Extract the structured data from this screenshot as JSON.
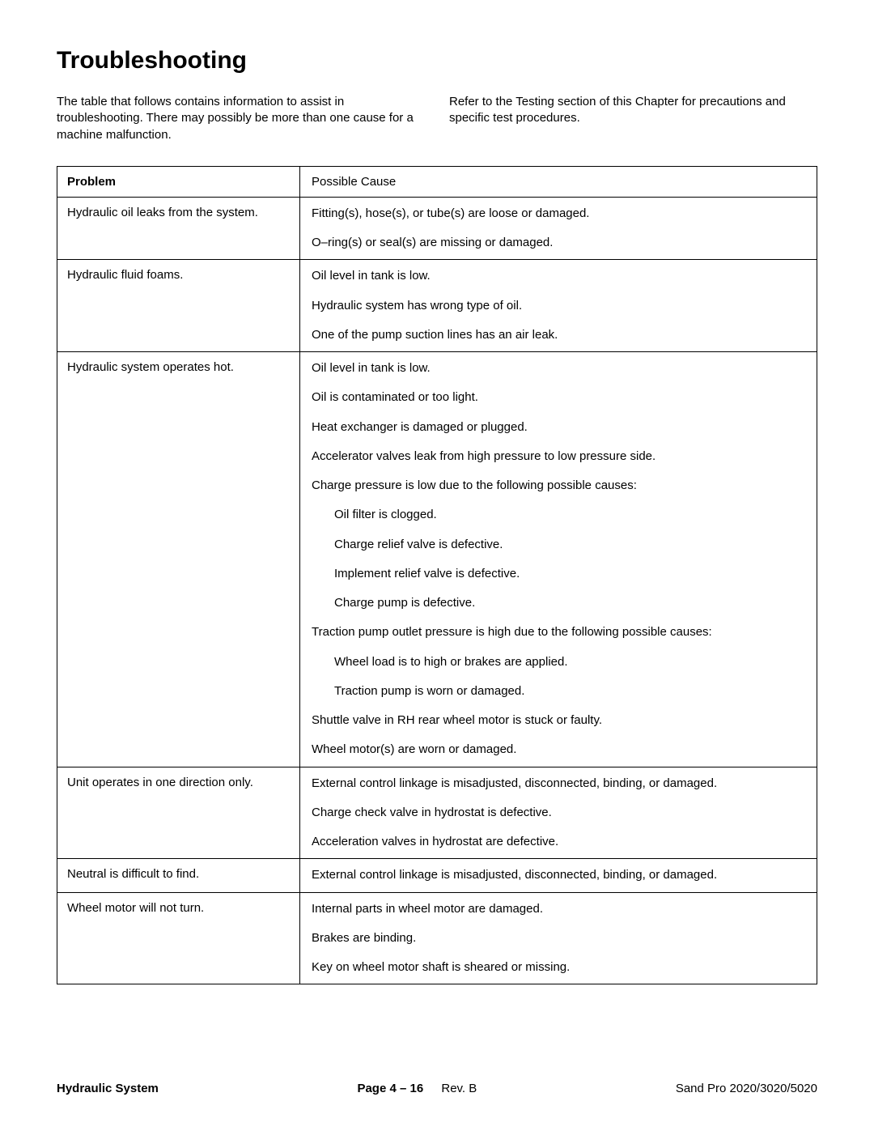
{
  "title": "Troubleshooting",
  "intro_left": "The table that follows contains information to assist in troubleshooting. There may possibly be more than one cause for a machine malfunction.",
  "intro_right": "Refer to the Testing section of this Chapter for precautions and specific test procedures.",
  "table": {
    "header_problem": "Problem",
    "header_cause": "Possible Cause",
    "rows": [
      {
        "problem": "Hydraulic oil leaks from the system.",
        "causes": [
          {
            "text": "Fitting(s), hose(s), or tube(s) are loose or damaged.",
            "sub": false
          },
          {
            "text": "O–ring(s) or seal(s) are missing or damaged.",
            "sub": false
          }
        ]
      },
      {
        "problem": "Hydraulic fluid foams.",
        "causes": [
          {
            "text": "Oil level in tank is low.",
            "sub": false
          },
          {
            "text": "Hydraulic system has wrong type of oil.",
            "sub": false
          },
          {
            "text": "One of the pump suction lines has an air leak.",
            "sub": false
          }
        ]
      },
      {
        "problem": "Hydraulic system operates hot.",
        "causes": [
          {
            "text": "Oil level in tank is low.",
            "sub": false
          },
          {
            "text": "Oil is contaminated or too light.",
            "sub": false
          },
          {
            "text": "Heat exchanger is damaged or plugged.",
            "sub": false
          },
          {
            "text": "Accelerator valves leak from high pressure to low pressure side.",
            "sub": false
          },
          {
            "text": "Charge pressure is low due to the following possible causes:",
            "sub": false
          },
          {
            "text": "Oil filter is clogged.",
            "sub": true
          },
          {
            "text": "Charge relief valve is defective.",
            "sub": true
          },
          {
            "text": "Implement relief valve is defective.",
            "sub": true
          },
          {
            "text": "Charge pump is defective.",
            "sub": true
          },
          {
            "text": "Traction pump outlet pressure is high due to the following possible causes:",
            "sub": false
          },
          {
            "text": "Wheel load is to high or brakes are applied.",
            "sub": true
          },
          {
            "text": "Traction pump is worn or damaged.",
            "sub": true
          },
          {
            "text": "Shuttle valve in RH rear wheel motor is stuck or faulty.",
            "sub": false
          },
          {
            "text": "Wheel motor(s) are worn or damaged.",
            "sub": false
          }
        ]
      },
      {
        "problem": "Unit operates in one direction only.",
        "causes": [
          {
            "text": "External control linkage is misadjusted, disconnected, binding, or damaged.",
            "sub": false
          },
          {
            "text": "Charge check valve in hydrostat is defective.",
            "sub": false
          },
          {
            "text": "Acceleration valves in hydrostat are defective.",
            "sub": false
          }
        ]
      },
      {
        "problem": "Neutral is difficult to find.",
        "causes": [
          {
            "text": "External control linkage is misadjusted, disconnected, binding, or damaged.",
            "sub": false
          }
        ]
      },
      {
        "problem": "Wheel motor will not turn.",
        "causes": [
          {
            "text": "Internal parts in wheel motor are damaged.",
            "sub": false
          },
          {
            "text": "Brakes are binding.",
            "sub": false
          },
          {
            "text": "Key on wheel motor shaft is sheared or missing.",
            "sub": false
          }
        ]
      }
    ]
  },
  "footer": {
    "left": "Hydraulic System",
    "page_label": "Page 4 – 16",
    "rev": "Rev. B",
    "right": "Sand Pro 2020/3020/5020"
  }
}
